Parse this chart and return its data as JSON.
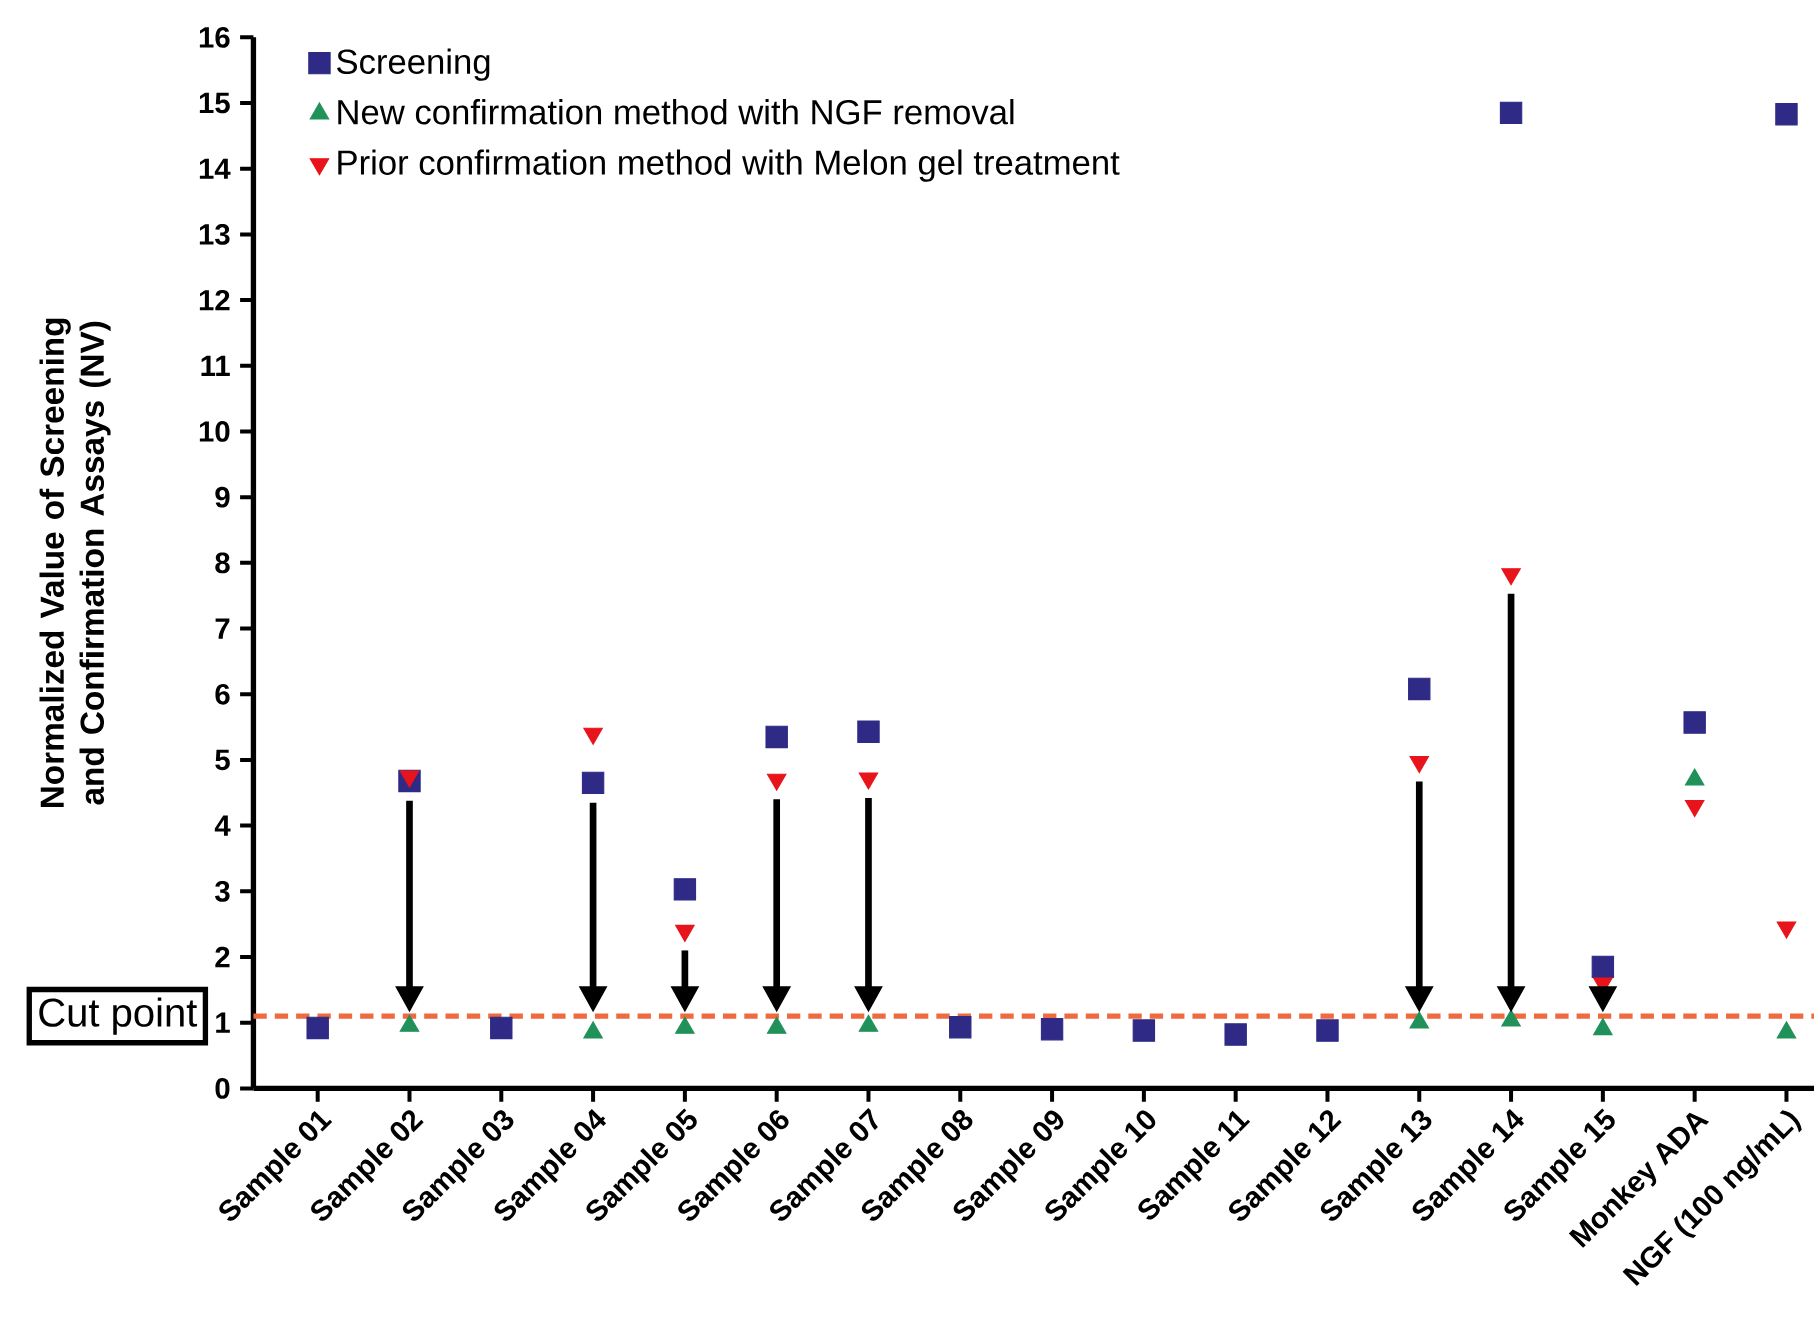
{
  "chart_data": {
    "type": "scatter",
    "ylabel": "Normalized Value of Screening and Confirmation Assays (NV)",
    "categories": [
      "Sample 01",
      "Sample 02",
      "Sample 03",
      "Sample 04",
      "Sample 05",
      "Sample 06",
      "Sample 07",
      "Sample 08",
      "Sample 09",
      "Sample 10",
      "Sample 11",
      "Sample 12",
      "Sample 13",
      "Sample 14",
      "Sample 15",
      "Monkey ADA",
      "NGF (100 ng/mL)"
    ],
    "series": [
      {
        "name": "Screening",
        "color": "#2e2a86",
        "marker": "square",
        "values": [
          0.92,
          4.68,
          0.92,
          4.65,
          3.03,
          5.35,
          5.43,
          0.93,
          0.9,
          0.88,
          0.82,
          0.88,
          6.08,
          14.85,
          1.85,
          5.57,
          14.83
        ]
      },
      {
        "name": "New confirmation method with NGF removal",
        "color": "#21915a",
        "marker": "triangle",
        "values": [
          null,
          0.95,
          null,
          0.85,
          0.92,
          0.92,
          0.95,
          null,
          null,
          null,
          null,
          null,
          1.0,
          1.03,
          0.9,
          4.7,
          0.85
        ]
      },
      {
        "name": "Prior confirmation method with Melon gel treatment",
        "color": "#e8141b",
        "marker": "triangle_down",
        "values": [
          null,
          4.75,
          null,
          5.4,
          2.4,
          4.7,
          4.72,
          null,
          null,
          null,
          null,
          null,
          4.97,
          7.83,
          1.6,
          4.3,
          2.45
        ]
      }
    ],
    "ylim": [
      0,
      16
    ],
    "yticks": [
      0,
      1,
      2,
      3,
      4,
      5,
      6,
      7,
      8,
      9,
      10,
      11,
      12,
      13,
      14,
      15,
      16
    ],
    "ref_lines": [
      {
        "axis": "y",
        "value": 1.1,
        "label": "Cut point",
        "color": "#ee6a3f",
        "line_style": "dashed"
      }
    ],
    "legend": "top left",
    "grid": false
  }
}
